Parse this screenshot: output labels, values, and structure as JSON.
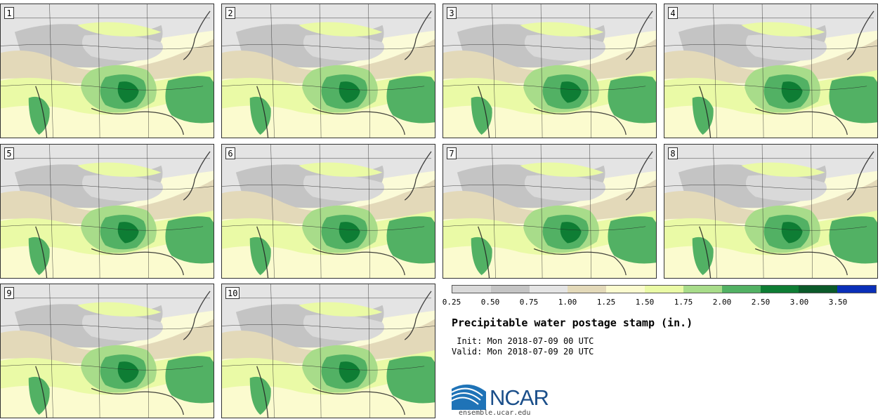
{
  "panels": [
    {
      "number": "1"
    },
    {
      "number": "2"
    },
    {
      "number": "3"
    },
    {
      "number": "4"
    },
    {
      "number": "5"
    },
    {
      "number": "6"
    },
    {
      "number": "7"
    },
    {
      "number": "8"
    },
    {
      "number": "9"
    },
    {
      "number": "10"
    }
  ],
  "colorbar": {
    "colors": [
      "#d9d9d9",
      "#c4c4c4",
      "#e4e4e4",
      "#e3d9b9",
      "#fbfbcf",
      "#eafaa6",
      "#a8dc8a",
      "#52b164",
      "#0e7d34",
      "#0b5a2a",
      "#0a2fb8"
    ],
    "ticks": [
      "0.25",
      "0.50",
      "0.75",
      "1.00",
      "1.25",
      "1.50",
      "1.75",
      "2.00",
      "2.50",
      "3.00",
      "3.50"
    ]
  },
  "title": "Precipitable water postage stamp (in.)",
  "init_line": " Init: Mon 2018-07-09 00 UTC",
  "valid_line": "Valid: Mon 2018-07-09 20 UTC",
  "logo": {
    "name": "NCAR",
    "url": "ensemble.ucar.edu"
  }
}
